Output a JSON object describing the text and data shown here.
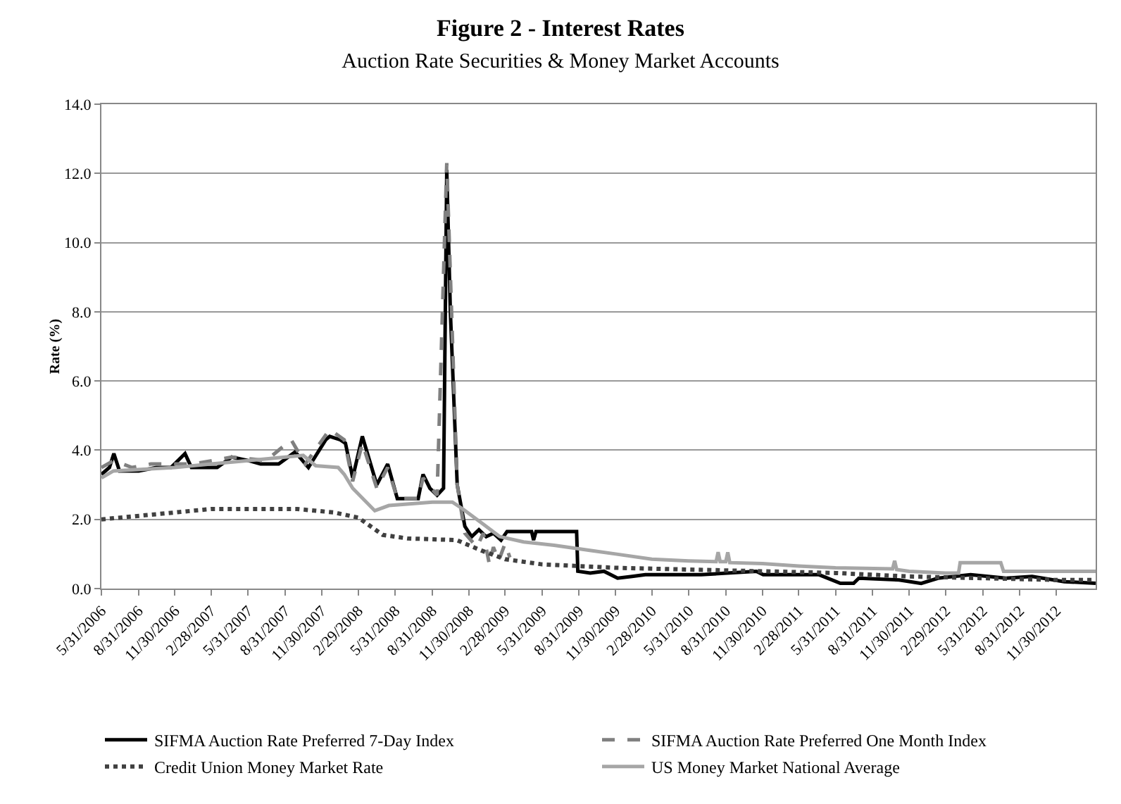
{
  "chart_data": {
    "type": "line",
    "title": "Figure 2 - Interest Rates",
    "subtitle": "Auction Rate Securities & Money Market Accounts",
    "ylabel": "Rate (%)",
    "xlim": [
      "2006-05-31",
      "2013-03-08"
    ],
    "xticks": [
      {
        "value": "2006-05-31",
        "label": "5/31/2006"
      },
      {
        "value": "2006-08-31",
        "label": "8/31/2006"
      },
      {
        "value": "2006-11-30",
        "label": "11/30/2006"
      },
      {
        "value": "2007-02-28",
        "label": "2/28/2007"
      },
      {
        "value": "2007-05-31",
        "label": "5/31/2007"
      },
      {
        "value": "2007-08-31",
        "label": "8/31/2007"
      },
      {
        "value": "2007-11-30",
        "label": "11/30/2007"
      },
      {
        "value": "2008-02-29",
        "label": "2/29/2008"
      },
      {
        "value": "2008-05-31",
        "label": "5/31/2008"
      },
      {
        "value": "2008-08-31",
        "label": "8/31/2008"
      },
      {
        "value": "2008-11-30",
        "label": "11/30/2008"
      },
      {
        "value": "2009-02-28",
        "label": "2/28/2009"
      },
      {
        "value": "2009-05-31",
        "label": "5/31/2009"
      },
      {
        "value": "2009-08-31",
        "label": "8/31/2009"
      },
      {
        "value": "2009-11-30",
        "label": "11/30/2009"
      },
      {
        "value": "2010-02-28",
        "label": "2/28/2010"
      },
      {
        "value": "2010-05-31",
        "label": "5/31/2010"
      },
      {
        "value": "2010-08-31",
        "label": "8/31/2010"
      },
      {
        "value": "2010-11-30",
        "label": "11/30/2010"
      },
      {
        "value": "2011-02-28",
        "label": "2/28/2011"
      },
      {
        "value": "2011-05-31",
        "label": "5/31/2011"
      },
      {
        "value": "2011-08-31",
        "label": "8/31/2011"
      },
      {
        "value": "2011-11-30",
        "label": "11/30/2011"
      },
      {
        "value": "2012-02-29",
        "label": "2/29/2012"
      },
      {
        "value": "2012-05-31",
        "label": "5/31/2012"
      },
      {
        "value": "2012-08-31",
        "label": "8/31/2012"
      },
      {
        "value": "2012-11-30",
        "label": "11/30/2012"
      }
    ],
    "ylim": [
      0,
      14
    ],
    "yticks": [
      {
        "value": 0,
        "label": "0.0"
      },
      {
        "value": 2,
        "label": "2.0"
      },
      {
        "value": 4,
        "label": "4.0"
      },
      {
        "value": 6,
        "label": "6.0"
      },
      {
        "value": 8,
        "label": "8.0"
      },
      {
        "value": 10,
        "label": "10.0"
      },
      {
        "value": 12,
        "label": "12.0"
      },
      {
        "value": 14,
        "label": "14.0"
      }
    ],
    "grid": "y",
    "legend": "bottom",
    "marker": "none",
    "series": [
      {
        "name": "SIFMA Auction Rate Preferred 7-Day Index",
        "color": "#000000",
        "line_style": "solid",
        "x": [
          "2006-05-31",
          "2006-06-20",
          "2006-07-01",
          "2006-07-15",
          "2006-09-01",
          "2006-10-15",
          "2006-11-20",
          "2006-12-25",
          "2007-01-10",
          "2007-03-15",
          "2007-04-20",
          "2007-05-31",
          "2007-07-01",
          "2007-08-15",
          "2007-09-25",
          "2007-10-28",
          "2007-12-10",
          "2007-12-20",
          "2008-01-15",
          "2008-01-28",
          "2008-02-15",
          "2008-03-10",
          "2008-04-15",
          "2008-05-12",
          "2008-06-05",
          "2008-07-27",
          "2008-08-08",
          "2008-08-25",
          "2008-09-12",
          "2008-09-28",
          "2008-10-06",
          "2008-10-15",
          "2008-11-01",
          "2008-11-20",
          "2008-12-07",
          "2008-12-25",
          "2009-01-12",
          "2009-01-30",
          "2009-02-18",
          "2009-03-05",
          "2009-05-05",
          "2009-05-10",
          "2009-05-16",
          "2009-08-25",
          "2009-08-28",
          "2009-09-28",
          "2009-11-01",
          "2009-12-05",
          "2010-01-10",
          "2010-02-12",
          "2010-07-01",
          "2010-11-15",
          "2010-12-02",
          "2011-04-20",
          "2011-06-12",
          "2011-07-15",
          "2011-07-28",
          "2011-11-05",
          "2011-12-30",
          "2012-02-10",
          "2012-05-01",
          "2012-07-28",
          "2012-10-01",
          "2012-12-20",
          "2013-03-08"
        ],
        "values": [
          3.3,
          3.5,
          3.9,
          3.4,
          3.4,
          3.5,
          3.5,
          3.9,
          3.5,
          3.5,
          3.8,
          3.7,
          3.6,
          3.6,
          3.95,
          3.5,
          4.3,
          4.4,
          4.3,
          4.2,
          3.2,
          4.4,
          3.0,
          3.6,
          2.6,
          2.6,
          3.3,
          2.9,
          2.7,
          2.9,
          12.1,
          8.0,
          3.0,
          1.8,
          1.5,
          1.7,
          1.5,
          1.6,
          1.4,
          1.65,
          1.65,
          1.4,
          1.65,
          1.65,
          0.5,
          0.45,
          0.5,
          0.3,
          0.35,
          0.4,
          0.4,
          0.5,
          0.4,
          0.4,
          0.15,
          0.15,
          0.3,
          0.25,
          0.15,
          0.3,
          0.4,
          0.3,
          0.35,
          0.2,
          0.15
        ]
      },
      {
        "name": "SIFMA Auction Rate Preferred One Month Index",
        "color": "#808080",
        "line_style": "dashed",
        "x": [
          "2006-05-31",
          "2006-07-01",
          "2006-08-15",
          "2006-10-01",
          "2007-01-15",
          "2007-04-20",
          "2007-07-15",
          "2007-09-15",
          "2007-10-20",
          "2007-12-20",
          "2008-01-25",
          "2008-02-15",
          "2008-03-10",
          "2008-04-15",
          "2008-05-12",
          "2008-06-05",
          "2008-07-27",
          "2008-08-08",
          "2008-09-12",
          "2008-10-06",
          "2008-10-18",
          "2008-11-01",
          "2008-11-20",
          "2008-12-20",
          "2009-01-05",
          "2009-01-20",
          "2009-01-30",
          "2009-02-12",
          "2009-02-28",
          "2009-03-12"
        ],
        "values": [
          3.5,
          3.7,
          3.5,
          3.6,
          3.6,
          3.8,
          3.7,
          4.3,
          3.6,
          4.6,
          4.3,
          3.1,
          4.2,
          2.9,
          3.5,
          2.6,
          2.6,
          3.2,
          2.7,
          12.3,
          8.0,
          3.0,
          1.6,
          1.2,
          1.6,
          0.7,
          1.2,
          0.8,
          1.3,
          0.9
        ]
      },
      {
        "name": "Credit Union Money Market Rate",
        "color": "#404040",
        "line_style": "dotted",
        "x": [
          "2006-05-31",
          "2006-11-30",
          "2007-02-28",
          "2007-09-30",
          "2007-12-31",
          "2008-02-29",
          "2008-04-30",
          "2008-06-30",
          "2008-10-31",
          "2008-12-31",
          "2009-02-28",
          "2009-05-31",
          "2009-08-31",
          "2009-11-30",
          "2010-05-31",
          "2010-11-30",
          "2011-05-31",
          "2011-11-30",
          "2012-05-31",
          "2012-11-30",
          "2013-03-08"
        ],
        "values": [
          2.0,
          2.2,
          2.3,
          2.3,
          2.2,
          2.05,
          1.55,
          1.45,
          1.4,
          1.1,
          0.85,
          0.7,
          0.65,
          0.6,
          0.55,
          0.5,
          0.45,
          0.35,
          0.3,
          0.25,
          0.25
        ]
      },
      {
        "name": "US Money Market National Average",
        "color": "#a6a6a6",
        "line_style": "solid",
        "x": [
          "2006-05-31",
          "2006-06-30",
          "2006-11-30",
          "2007-02-28",
          "2007-05-31",
          "2007-08-31",
          "2007-10-15",
          "2007-11-15",
          "2008-01-10",
          "2008-01-25",
          "2008-02-15",
          "2008-04-10",
          "2008-05-15",
          "2008-08-31",
          "2008-10-20",
          "2008-11-15",
          "2008-12-31",
          "2009-02-15",
          "2009-04-15",
          "2009-06-30",
          "2009-09-30",
          "2009-11-30",
          "2010-02-28",
          "2010-05-31",
          "2010-08-07",
          "2010-08-12",
          "2010-08-17",
          "2010-08-31",
          "2010-09-05",
          "2010-09-10",
          "2010-11-30",
          "2011-02-28",
          "2011-05-31",
          "2011-10-20",
          "2011-10-25",
          "2011-10-30",
          "2011-11-30",
          "2012-02-28",
          "2012-04-01",
          "2012-04-05",
          "2012-07-15",
          "2012-07-22",
          "2013-03-08"
        ],
        "values": [
          3.2,
          3.4,
          3.5,
          3.6,
          3.7,
          3.8,
          3.85,
          3.55,
          3.5,
          3.3,
          2.9,
          2.25,
          2.4,
          2.5,
          2.5,
          2.3,
          1.9,
          1.5,
          1.35,
          1.25,
          1.1,
          1.0,
          0.85,
          0.8,
          0.78,
          1.05,
          0.78,
          0.78,
          1.05,
          0.75,
          0.72,
          0.65,
          0.6,
          0.57,
          0.8,
          0.55,
          0.5,
          0.45,
          0.45,
          0.75,
          0.75,
          0.5,
          0.5
        ]
      }
    ]
  }
}
